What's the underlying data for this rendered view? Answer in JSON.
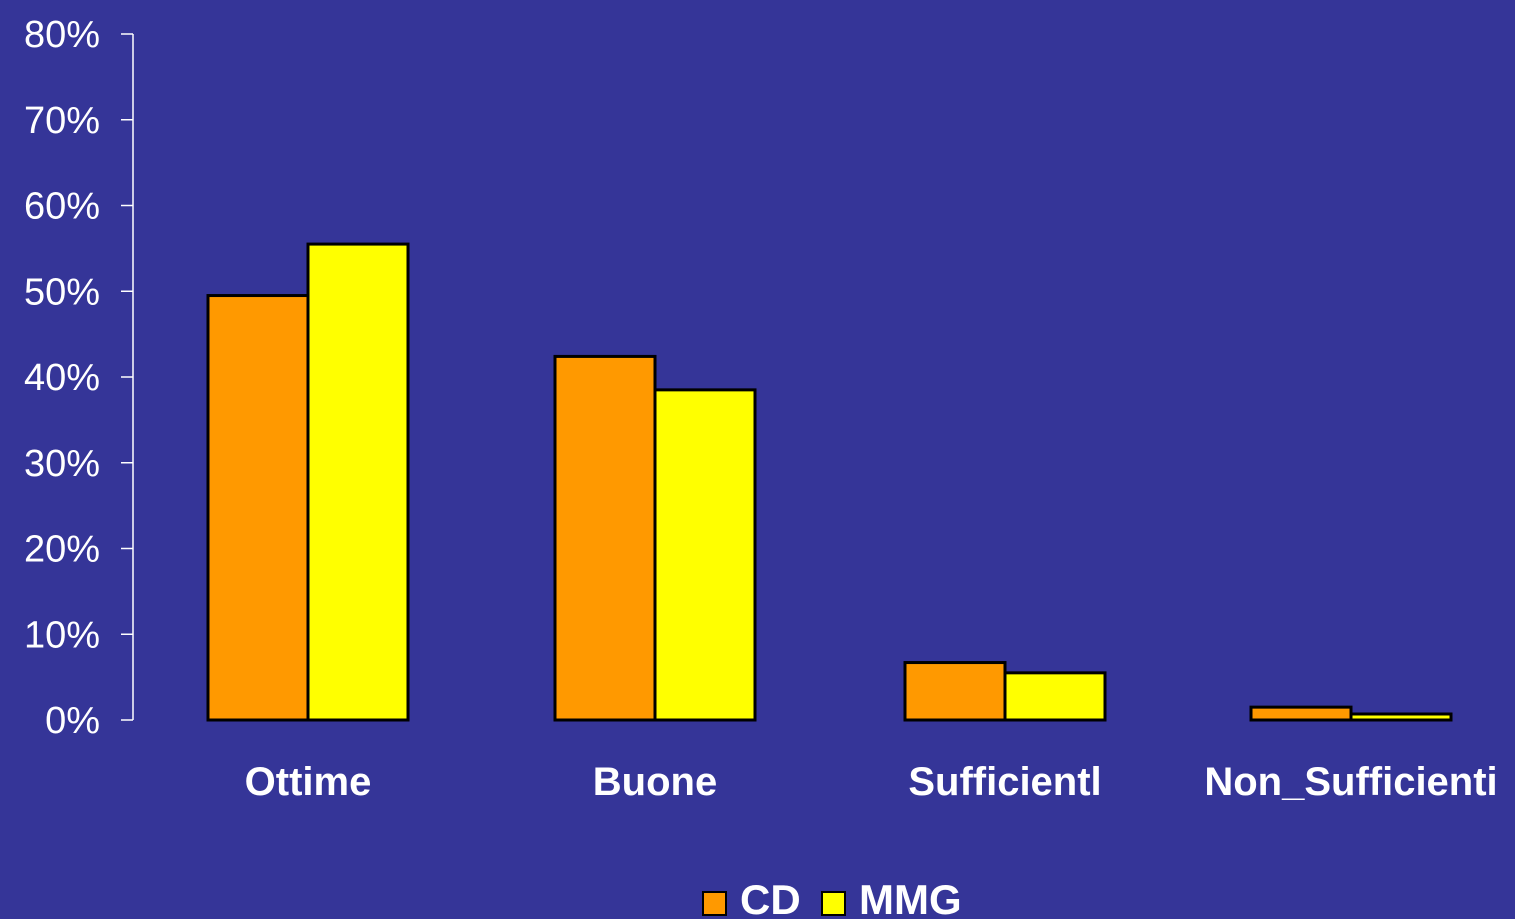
{
  "chart_data": {
    "type": "bar",
    "categories": [
      "Ottime",
      "Buone",
      "Sufficientl",
      "Non_Sufficienti"
    ],
    "series": [
      {
        "name": "CD",
        "values": [
          49.5,
          42.4,
          6.7,
          1.5
        ],
        "color": "#ff9900"
      },
      {
        "name": "MMG",
        "values": [
          55.5,
          38.5,
          5.5,
          0.7
        ],
        "color": "#ffff00"
      }
    ],
    "ylim": [
      0,
      80
    ],
    "yticks": [
      0,
      10,
      20,
      30,
      40,
      50,
      60,
      70,
      80
    ],
    "ytick_labels": [
      "0%",
      "10%",
      "20%",
      "30%",
      "40%",
      "50%",
      "60%",
      "70%",
      "80%"
    ],
    "grid": false,
    "legend_position": "bottom-center",
    "background_color": "#353598",
    "text_color": "#ffffff"
  }
}
